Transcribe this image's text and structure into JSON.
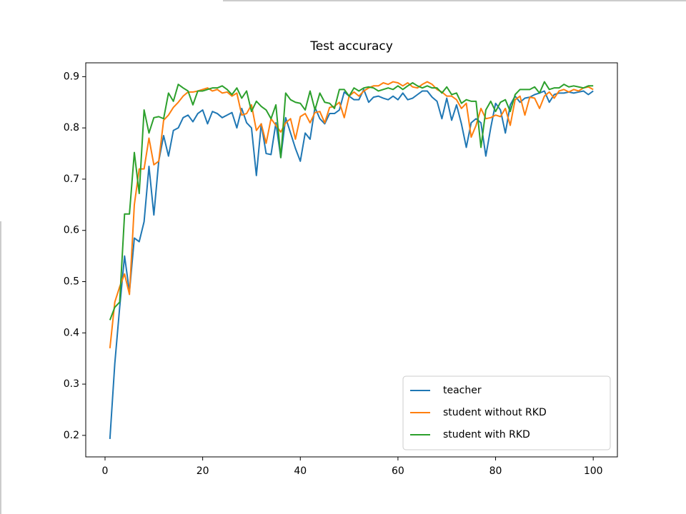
{
  "chart_data": {
    "type": "line",
    "title": "Test accuracy",
    "x": [
      1,
      2,
      3,
      4,
      5,
      6,
      7,
      8,
      9,
      10,
      11,
      12,
      13,
      14,
      15,
      16,
      17,
      18,
      19,
      20,
      21,
      22,
      23,
      24,
      25,
      26,
      27,
      28,
      29,
      30,
      31,
      32,
      33,
      34,
      35,
      36,
      37,
      38,
      39,
      40,
      41,
      42,
      43,
      44,
      45,
      46,
      47,
      48,
      49,
      50,
      51,
      52,
      53,
      54,
      55,
      56,
      57,
      58,
      59,
      60,
      61,
      62,
      63,
      64,
      65,
      66,
      67,
      68,
      69,
      70,
      71,
      72,
      73,
      74,
      75,
      76,
      77,
      78,
      79,
      80,
      81,
      82,
      83,
      84,
      85,
      86,
      87,
      88,
      89,
      90,
      91,
      92,
      93,
      94,
      95,
      96,
      97,
      98,
      99,
      100
    ],
    "series": [
      {
        "name": "teacher",
        "color": "#1f77b4",
        "values": [
          0.193,
          0.34,
          0.45,
          0.55,
          0.48,
          0.585,
          0.578,
          0.617,
          0.725,
          0.63,
          0.735,
          0.785,
          0.745,
          0.795,
          0.8,
          0.82,
          0.825,
          0.812,
          0.828,
          0.835,
          0.808,
          0.832,
          0.828,
          0.82,
          0.825,
          0.83,
          0.8,
          0.838,
          0.81,
          0.8,
          0.707,
          0.808,
          0.75,
          0.748,
          0.81,
          0.742,
          0.82,
          0.79,
          0.76,
          0.735,
          0.79,
          0.778,
          0.84,
          0.818,
          0.808,
          0.828,
          0.828,
          0.835,
          0.87,
          0.862,
          0.855,
          0.855,
          0.875,
          0.85,
          0.86,
          0.862,
          0.858,
          0.855,
          0.862,
          0.855,
          0.868,
          0.855,
          0.858,
          0.865,
          0.872,
          0.872,
          0.86,
          0.852,
          0.818,
          0.858,
          0.815,
          0.845,
          0.808,
          0.762,
          0.81,
          0.818,
          0.81,
          0.745,
          0.8,
          0.848,
          0.835,
          0.79,
          0.845,
          0.862,
          0.85,
          0.858,
          0.86,
          0.865,
          0.868,
          0.872,
          0.85,
          0.865,
          0.868,
          0.868,
          0.87,
          0.868,
          0.87,
          0.872,
          0.865,
          0.872
        ]
      },
      {
        "name": "student without RKD",
        "color": "#ff7f0e",
        "values": [
          0.37,
          0.46,
          0.49,
          0.515,
          0.475,
          0.65,
          0.72,
          0.72,
          0.78,
          0.728,
          0.735,
          0.815,
          0.825,
          0.84,
          0.85,
          0.862,
          0.87,
          0.87,
          0.872,
          0.875,
          0.878,
          0.872,
          0.875,
          0.868,
          0.87,
          0.862,
          0.868,
          0.825,
          0.828,
          0.845,
          0.795,
          0.808,
          0.77,
          0.818,
          0.805,
          0.792,
          0.81,
          0.818,
          0.778,
          0.822,
          0.828,
          0.81,
          0.83,
          0.832,
          0.81,
          0.84,
          0.842,
          0.85,
          0.82,
          0.862,
          0.87,
          0.862,
          0.872,
          0.878,
          0.882,
          0.882,
          0.888,
          0.885,
          0.89,
          0.888,
          0.882,
          0.888,
          0.88,
          0.878,
          0.885,
          0.89,
          0.885,
          0.875,
          0.87,
          0.862,
          0.862,
          0.855,
          0.838,
          0.848,
          0.782,
          0.805,
          0.838,
          0.818,
          0.82,
          0.825,
          0.822,
          0.838,
          0.805,
          0.855,
          0.862,
          0.825,
          0.86,
          0.858,
          0.838,
          0.862,
          0.87,
          0.858,
          0.872,
          0.875,
          0.87,
          0.875,
          0.872,
          0.878,
          0.88,
          0.875
        ]
      },
      {
        "name": "student with RKD",
        "color": "#2ca02c",
        "values": [
          0.425,
          0.45,
          0.46,
          0.632,
          0.632,
          0.752,
          0.672,
          0.835,
          0.79,
          0.82,
          0.822,
          0.818,
          0.868,
          0.852,
          0.885,
          0.878,
          0.872,
          0.845,
          0.872,
          0.872,
          0.875,
          0.878,
          0.878,
          0.882,
          0.875,
          0.865,
          0.878,
          0.858,
          0.872,
          0.832,
          0.852,
          0.842,
          0.835,
          0.818,
          0.845,
          0.742,
          0.868,
          0.855,
          0.85,
          0.848,
          0.835,
          0.872,
          0.835,
          0.868,
          0.85,
          0.848,
          0.838,
          0.875,
          0.875,
          0.862,
          0.878,
          0.872,
          0.878,
          0.88,
          0.878,
          0.872,
          0.875,
          0.878,
          0.875,
          0.882,
          0.875,
          0.882,
          0.888,
          0.882,
          0.878,
          0.882,
          0.878,
          0.878,
          0.868,
          0.88,
          0.865,
          0.868,
          0.848,
          0.855,
          0.852,
          0.852,
          0.762,
          0.835,
          0.852,
          0.832,
          0.85,
          0.855,
          0.832,
          0.865,
          0.875,
          0.875,
          0.875,
          0.88,
          0.868,
          0.89,
          0.875,
          0.878,
          0.878,
          0.885,
          0.88,
          0.882,
          0.88,
          0.878,
          0.882,
          0.882
        ]
      }
    ],
    "xlim": [
      -3.95,
      104.95
    ],
    "ylim": [
      0.158,
      0.927
    ],
    "xticks": [
      0,
      20,
      40,
      60,
      80,
      100
    ],
    "yticks": [
      0.2,
      0.3,
      0.4,
      0.5,
      0.6,
      0.7,
      0.8,
      0.9
    ],
    "legend": "lower right"
  }
}
